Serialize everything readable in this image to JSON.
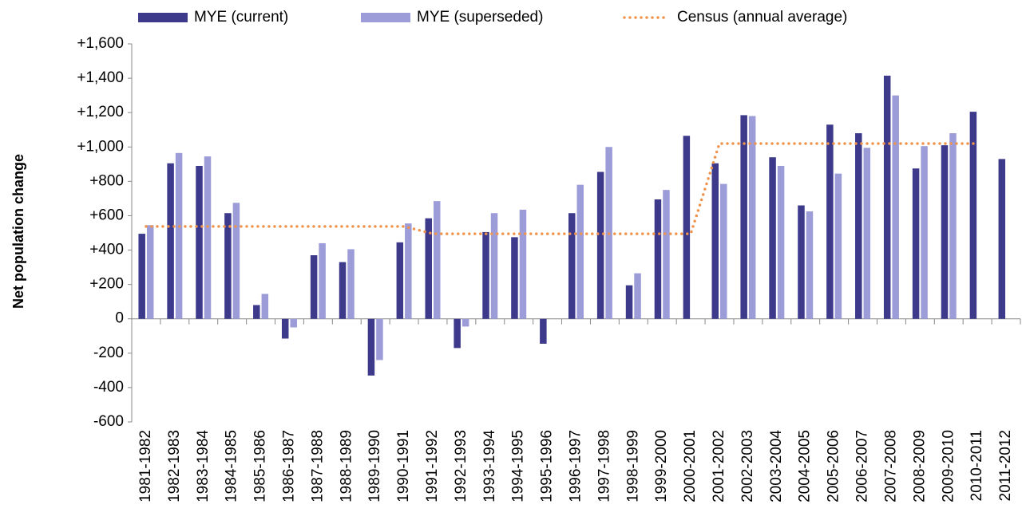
{
  "chart_data": {
    "type": "bar",
    "y_label": "Net population change",
    "categories": [
      "1981-1982",
      "1982-1983",
      "1983-1984",
      "1984-1985",
      "1985-1986",
      "1986-1987",
      "1987-1988",
      "1988-1989",
      "1989-1990",
      "1990-1991",
      "1991-1992",
      "1992-1993",
      "1993-1994",
      "1994-1995",
      "1995-1996",
      "1996-1997",
      "1997-1998",
      "1998-1999",
      "1999-2000",
      "2000-2001",
      "2001-2002",
      "2002-2003",
      "2003-2004",
      "2004-2005",
      "2005-2006",
      "2006-2007",
      "2007-2008",
      "2008-2009",
      "2009-2010",
      "2010-2011",
      "2011-2012"
    ],
    "series": [
      {
        "name": "MYE (current)",
        "color": "#3d3a8c",
        "kind": "bar",
        "values": [
          495,
          905,
          890,
          615,
          80,
          -115,
          370,
          330,
          -330,
          445,
          585,
          -170,
          505,
          475,
          -145,
          615,
          855,
          195,
          695,
          1065,
          905,
          1185,
          940,
          660,
          1130,
          1080,
          1415,
          875,
          1010,
          1205,
          930
        ]
      },
      {
        "name": "MYE (superseded)",
        "color": "#9c9cd8",
        "kind": "bar",
        "values": [
          545,
          965,
          945,
          675,
          145,
          -50,
          440,
          405,
          -240,
          555,
          685,
          -45,
          615,
          635,
          null,
          780,
          1000,
          265,
          750,
          null,
          785,
          1180,
          890,
          625,
          845,
          995,
          1300,
          1005,
          1080,
          null,
          null
        ]
      },
      {
        "name": "Census (annual average)",
        "color": "#f0944d",
        "kind": "line",
        "values": [
          538,
          538,
          538,
          538,
          538,
          538,
          538,
          538,
          538,
          538,
          495,
          495,
          495,
          495,
          495,
          495,
          495,
          495,
          495,
          495,
          1020,
          1020,
          1020,
          1020,
          1020,
          1020,
          1020,
          1020,
          1020,
          1020,
          null
        ]
      }
    ],
    "ylim": [
      -600,
      1600
    ],
    "yticks": [
      {
        "value": -600,
        "label": "-600"
      },
      {
        "value": -400,
        "label": "-400"
      },
      {
        "value": -200,
        "label": "-200"
      },
      0,
      {
        "value": 200,
        "label": "+200"
      },
      {
        "value": 400,
        "label": "+400"
      },
      {
        "value": 600,
        "label": "+600"
      },
      {
        "value": 800,
        "label": "+800"
      },
      {
        "value": 1000,
        "label": "+1,000"
      },
      {
        "value": 1200,
        "label": "+1,200"
      },
      {
        "value": 1400,
        "label": "+1,400"
      },
      {
        "value": 1600,
        "label": "+1,600"
      }
    ],
    "legend": "top",
    "grid": false
  }
}
